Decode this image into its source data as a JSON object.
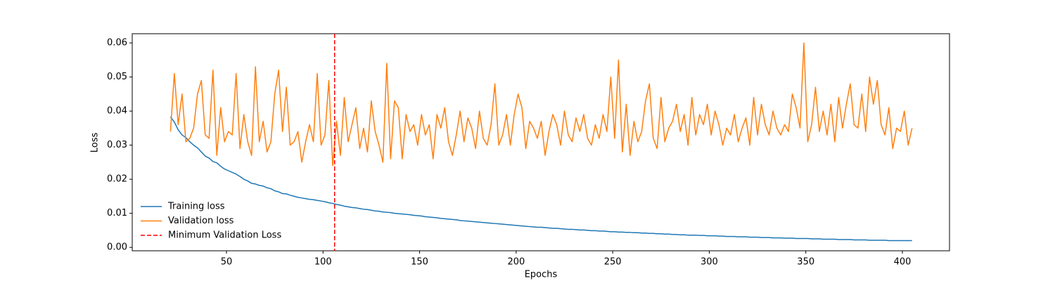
{
  "chart_data": {
    "type": "line",
    "xlabel": "Epochs",
    "ylabel": "Loss",
    "x": [
      21,
      23,
      25,
      27,
      29,
      31,
      33,
      35,
      37,
      39,
      41,
      43,
      45,
      47,
      49,
      51,
      53,
      55,
      57,
      59,
      61,
      63,
      65,
      67,
      69,
      71,
      73,
      75,
      77,
      79,
      81,
      83,
      85,
      87,
      89,
      91,
      93,
      95,
      97,
      99,
      101,
      103,
      105,
      107,
      109,
      111,
      113,
      115,
      117,
      119,
      121,
      123,
      125,
      127,
      129,
      131,
      133,
      135,
      137,
      139,
      141,
      143,
      145,
      147,
      149,
      151,
      153,
      155,
      157,
      159,
      161,
      163,
      165,
      167,
      169,
      171,
      173,
      175,
      177,
      179,
      181,
      183,
      185,
      187,
      189,
      191,
      193,
      195,
      197,
      199,
      201,
      203,
      205,
      207,
      209,
      211,
      213,
      215,
      217,
      219,
      221,
      223,
      225,
      227,
      229,
      231,
      233,
      235,
      237,
      239,
      241,
      243,
      245,
      247,
      249,
      251,
      253,
      255,
      257,
      259,
      261,
      263,
      265,
      267,
      269,
      271,
      273,
      275,
      277,
      279,
      281,
      283,
      285,
      287,
      289,
      291,
      293,
      295,
      297,
      299,
      301,
      303,
      305,
      307,
      309,
      311,
      313,
      315,
      317,
      319,
      321,
      323,
      325,
      327,
      329,
      331,
      333,
      335,
      337,
      339,
      341,
      343,
      345,
      347,
      349,
      351,
      353,
      355,
      357,
      359,
      361,
      363,
      365,
      367,
      369,
      371,
      373,
      375,
      377,
      379,
      381,
      383,
      385,
      387,
      389,
      391,
      393,
      395,
      397,
      399,
      401,
      403,
      405
    ],
    "series": [
      {
        "name": "Training loss",
        "color": "#1f77b4",
        "values": [
          0.0383,
          0.0368,
          0.0345,
          0.033,
          0.0322,
          0.031,
          0.03,
          0.0292,
          0.028,
          0.0268,
          0.0262,
          0.0252,
          0.0248,
          0.0238,
          0.023,
          0.0225,
          0.022,
          0.0215,
          0.0208,
          0.02,
          0.0195,
          0.0188,
          0.0186,
          0.0182,
          0.018,
          0.0175,
          0.0172,
          0.0166,
          0.0163,
          0.0158,
          0.0157,
          0.0153,
          0.015,
          0.0147,
          0.0145,
          0.0143,
          0.0141,
          0.014,
          0.0138,
          0.0136,
          0.0134,
          0.0131,
          0.0129,
          0.0126,
          0.0124,
          0.0121,
          0.0119,
          0.0117,
          0.0116,
          0.0114,
          0.0112,
          0.0111,
          0.0109,
          0.0107,
          0.0106,
          0.0104,
          0.0103,
          0.0102,
          0.01,
          0.0099,
          0.0098,
          0.0097,
          0.0096,
          0.0094,
          0.0093,
          0.0092,
          0.009,
          0.0089,
          0.0088,
          0.0087,
          0.0085,
          0.0084,
          0.0083,
          0.0082,
          0.0081,
          0.0079,
          0.0078,
          0.0077,
          0.0076,
          0.0075,
          0.0074,
          0.0073,
          0.0072,
          0.0071,
          0.007,
          0.0069,
          0.0068,
          0.0067,
          0.0066,
          0.0065,
          0.0064,
          0.0063,
          0.0062,
          0.0061,
          0.006,
          0.0059,
          0.0059,
          0.0058,
          0.0057,
          0.0056,
          0.0056,
          0.0055,
          0.0054,
          0.0053,
          0.0053,
          0.0052,
          0.0051,
          0.0051,
          0.005,
          0.0049,
          0.0049,
          0.0048,
          0.0048,
          0.0047,
          0.0046,
          0.0046,
          0.0045,
          0.0045,
          0.0044,
          0.0044,
          0.0043,
          0.0043,
          0.0042,
          0.0042,
          0.0041,
          0.0041,
          0.004,
          0.004,
          0.0039,
          0.0039,
          0.0038,
          0.0038,
          0.0037,
          0.0037,
          0.0036,
          0.0036,
          0.0036,
          0.0035,
          0.0035,
          0.0034,
          0.0034,
          0.0034,
          0.0033,
          0.0033,
          0.0032,
          0.0032,
          0.0032,
          0.0031,
          0.0031,
          0.0031,
          0.003,
          0.003,
          0.003,
          0.0029,
          0.0029,
          0.0029,
          0.0028,
          0.0028,
          0.0028,
          0.0027,
          0.0027,
          0.0027,
          0.0026,
          0.0026,
          0.0026,
          0.0026,
          0.0025,
          0.0025,
          0.0025,
          0.0024,
          0.0024,
          0.0024,
          0.0024,
          0.0023,
          0.0023,
          0.0023,
          0.0023,
          0.0022,
          0.0022,
          0.0022,
          0.0022,
          0.0021,
          0.0021,
          0.0021,
          0.0021,
          0.0021,
          0.002,
          0.002,
          0.002,
          0.002,
          0.002,
          0.002,
          0.002
        ]
      },
      {
        "name": "Validation loss",
        "color": "#ff7f0e",
        "values": [
          0.034,
          0.051,
          0.036,
          0.045,
          0.031,
          0.032,
          0.035,
          0.045,
          0.049,
          0.033,
          0.032,
          0.052,
          0.027,
          0.041,
          0.031,
          0.034,
          0.033,
          0.051,
          0.029,
          0.039,
          0.031,
          0.027,
          0.053,
          0.031,
          0.037,
          0.028,
          0.031,
          0.045,
          0.052,
          0.034,
          0.047,
          0.03,
          0.031,
          0.034,
          0.025,
          0.031,
          0.036,
          0.031,
          0.051,
          0.03,
          0.033,
          0.049,
          0.024,
          0.037,
          0.027,
          0.044,
          0.031,
          0.036,
          0.041,
          0.029,
          0.035,
          0.028,
          0.043,
          0.034,
          0.03,
          0.025,
          0.054,
          0.026,
          0.043,
          0.041,
          0.026,
          0.039,
          0.034,
          0.036,
          0.03,
          0.039,
          0.033,
          0.036,
          0.026,
          0.039,
          0.035,
          0.041,
          0.031,
          0.027,
          0.033,
          0.04,
          0.031,
          0.038,
          0.035,
          0.029,
          0.04,
          0.032,
          0.03,
          0.036,
          0.048,
          0.03,
          0.033,
          0.039,
          0.03,
          0.039,
          0.045,
          0.041,
          0.029,
          0.037,
          0.035,
          0.032,
          0.037,
          0.027,
          0.034,
          0.039,
          0.036,
          0.03,
          0.04,
          0.033,
          0.031,
          0.038,
          0.034,
          0.039,
          0.032,
          0.03,
          0.036,
          0.032,
          0.039,
          0.034,
          0.05,
          0.032,
          0.055,
          0.028,
          0.042,
          0.027,
          0.037,
          0.031,
          0.034,
          0.043,
          0.048,
          0.032,
          0.029,
          0.044,
          0.031,
          0.035,
          0.037,
          0.042,
          0.034,
          0.039,
          0.03,
          0.044,
          0.033,
          0.039,
          0.036,
          0.042,
          0.033,
          0.04,
          0.036,
          0.03,
          0.035,
          0.033,
          0.039,
          0.031,
          0.035,
          0.038,
          0.03,
          0.044,
          0.033,
          0.042,
          0.036,
          0.033,
          0.04,
          0.035,
          0.033,
          0.036,
          0.034,
          0.045,
          0.041,
          0.035,
          0.06,
          0.031,
          0.036,
          0.047,
          0.034,
          0.04,
          0.033,
          0.042,
          0.031,
          0.044,
          0.035,
          0.042,
          0.048,
          0.036,
          0.035,
          0.045,
          0.034,
          0.05,
          0.042,
          0.049,
          0.036,
          0.033,
          0.041,
          0.029,
          0.035,
          0.034,
          0.04,
          0.03,
          0.035
        ]
      }
    ],
    "vlines": [
      {
        "x": 106,
        "name": "Minimum Validation Loss",
        "color": "#ff0000",
        "style": "dashed"
      }
    ],
    "xlim": [
      1.2,
      424.4
    ],
    "ylim": [
      -0.001,
      0.0627
    ],
    "xticks": [
      50,
      100,
      150,
      200,
      250,
      300,
      350,
      400
    ],
    "yticks": [
      {
        "value": 0,
        "label": "0.00"
      },
      0.01,
      0.02,
      0.03,
      0.04,
      0.05,
      0.06
    ],
    "legend": "lower left"
  }
}
